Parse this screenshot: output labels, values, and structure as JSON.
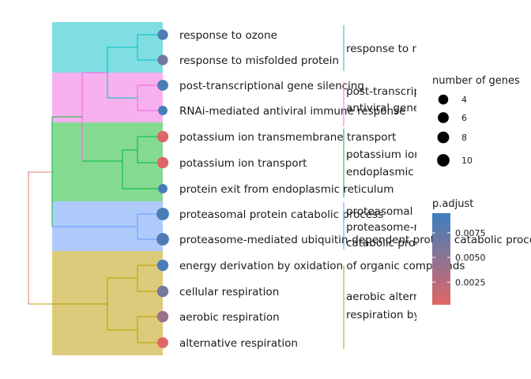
{
  "chart_data": {
    "type": "treeplot",
    "title": "",
    "xlabel": "",
    "ylabel": "",
    "colors": {
      "cluster_fills": [
        "#7fdee2",
        "#f7b1ee",
        "#85da92",
        "#afcbfb",
        "#dccb7a"
      ],
      "cluster_lines": [
        "#00bfc4",
        "#f564e3",
        "#00ba38",
        "#619cff",
        "#b79f00"
      ],
      "root_line_top": "#e07a7a",
      "root_line_bottom": "#b79f00",
      "padj_high": "#3d7fbf",
      "padj_low": "#e06666"
    },
    "clusters": [
      {
        "label_lines": [
          "response to m"
        ],
        "terms": [
          0,
          1
        ]
      },
      {
        "label_lines": [
          "post-transcrip",
          "antiviral gene"
        ],
        "terms": [
          2,
          3
        ]
      },
      {
        "label_lines": [
          "potassium ion",
          "endoplasmic"
        ],
        "terms": [
          4,
          5,
          6
        ]
      },
      {
        "label_lines": [
          "proteasomal",
          "proteasome-m",
          "catabolic proc"
        ],
        "terms": [
          7,
          8
        ]
      },
      {
        "label_lines": [
          "aerobic altern",
          "respiration by"
        ],
        "terms": [
          9,
          10,
          11,
          12
        ]
      }
    ],
    "terms": [
      {
        "name": "response to ozone",
        "count": 5,
        "p_adjust": 0.0085
      },
      {
        "name": "response to misfolded protein",
        "count": 5,
        "p_adjust": 0.0065
      },
      {
        "name": "post-transcriptional gene silencing",
        "count": 6,
        "p_adjust": 0.0088
      },
      {
        "name": "RNAi-mediated antiviral immune response",
        "count": 3,
        "p_adjust": 0.009
      },
      {
        "name": "potassium ion transmembrane transport",
        "count": 7,
        "p_adjust": 0.0003
      },
      {
        "name": "potassium ion transport",
        "count": 7,
        "p_adjust": 0.0003
      },
      {
        "name": "protein exit from endoplasmic reticulum",
        "count": 3,
        "p_adjust": 0.0088
      },
      {
        "name": "proteasomal protein catabolic process",
        "count": 10,
        "p_adjust": 0.0088
      },
      {
        "name": "proteasome-mediated ubiquitin-dependent protein catabolic process",
        "count": 10,
        "p_adjust": 0.0085
      },
      {
        "name": "energy derivation by oxidation of organic compounds",
        "count": 7,
        "p_adjust": 0.0088
      },
      {
        "name": "cellular respiration",
        "count": 7,
        "p_adjust": 0.0062
      },
      {
        "name": "aerobic respiration",
        "count": 7,
        "p_adjust": 0.004
      },
      {
        "name": "alternative respiration",
        "count": 6,
        "p_adjust": 0.0003
      }
    ],
    "size_legend": {
      "title": "number of genes",
      "values": [
        4,
        6,
        8,
        10
      ],
      "labels": [
        "4",
        "6",
        "8",
        "10"
      ]
    },
    "color_legend": {
      "title": "p.adjust",
      "range": [
        0.0002,
        0.0095
      ],
      "ticks": [
        0.0025,
        0.005,
        0.0075
      ],
      "tick_labels": [
        "0.0025",
        "0.0050",
        "0.0075"
      ]
    }
  }
}
